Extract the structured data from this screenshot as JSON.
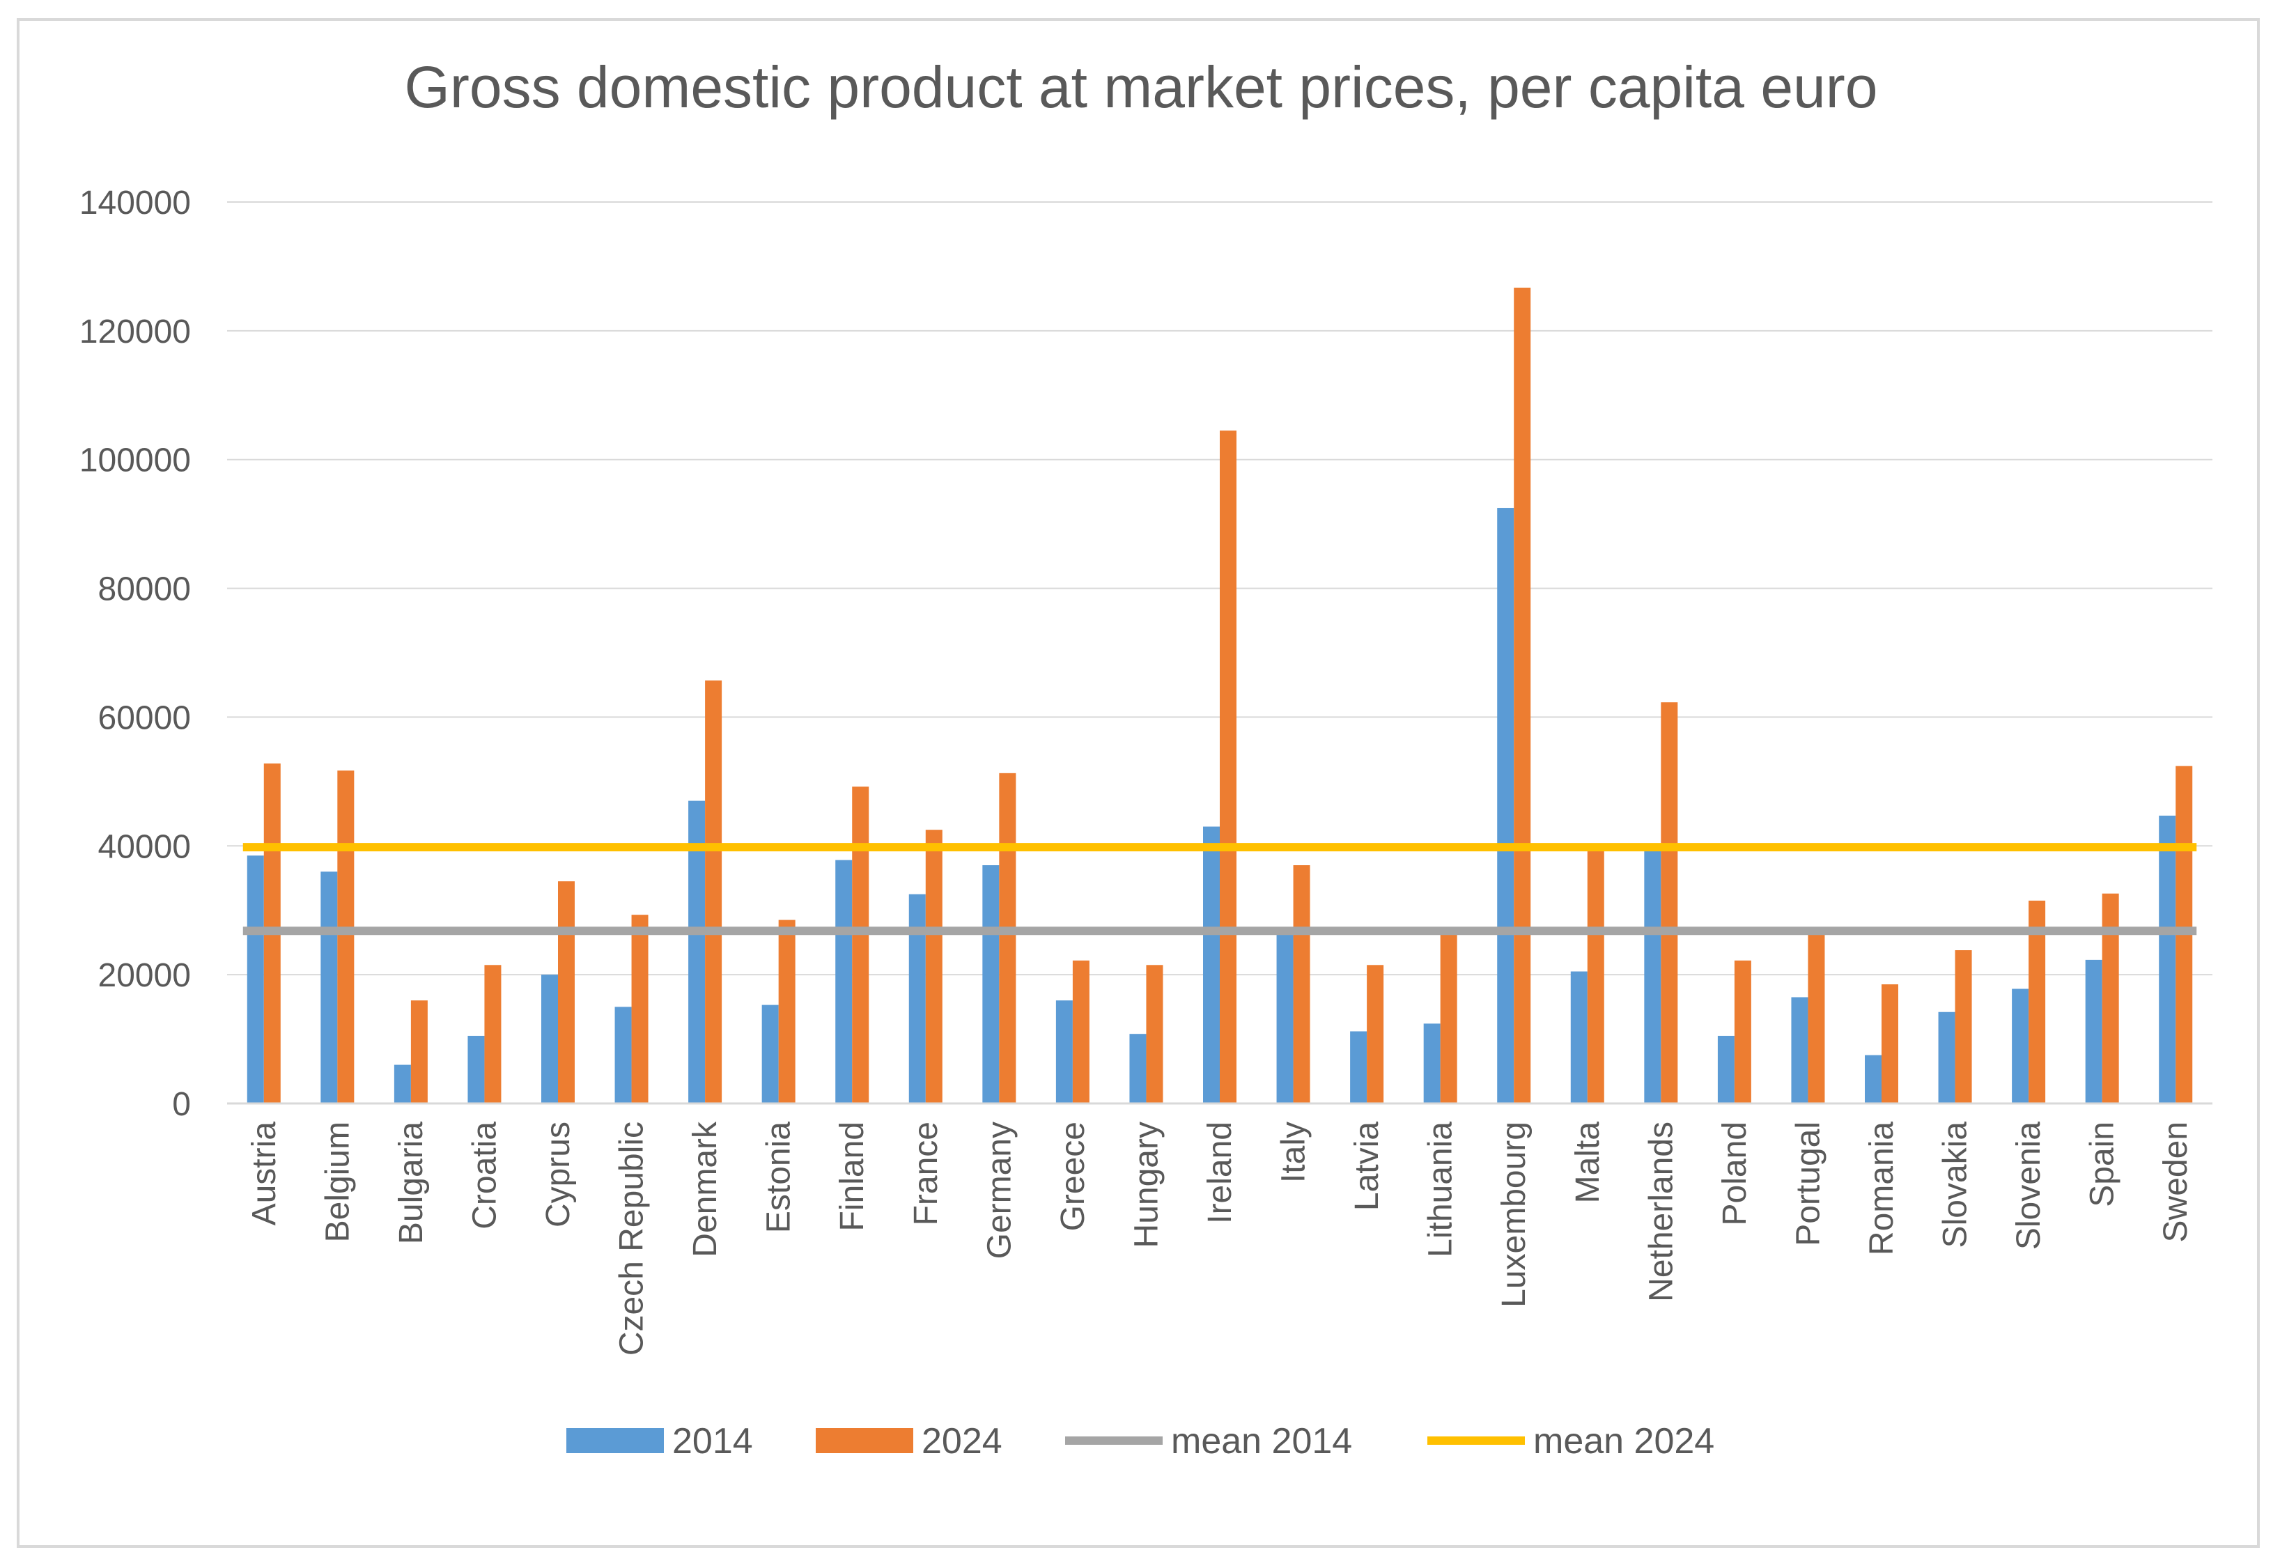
{
  "chart_data": {
    "type": "bar",
    "title": "Gross domestic product at market prices, per capita euro",
    "xlabel": "",
    "ylabel": "",
    "ylim": [
      0,
      140000
    ],
    "yticks": [
      "0",
      "20000",
      "40000",
      "60000",
      "80000",
      "100000",
      "120000",
      "140000"
    ],
    "grid": "horizontal",
    "legend_position": "bottom",
    "categories": [
      "Austria",
      "Belgium",
      "Bulgaria",
      "Croatia",
      "Cyprus",
      "Czech Republic",
      "Denmark",
      "Estonia",
      "Finland",
      "France",
      "Germany",
      "Greece",
      "Hungary",
      "Ireland",
      "Italy",
      "Latvia",
      "Lithuania",
      "Luxembourg",
      "Malta",
      "Netherlands",
      "Poland",
      "Portugal",
      "Romania",
      "Slovakia",
      "Slovenia",
      "Spain",
      "Sweden"
    ],
    "series": [
      {
        "name": "2014",
        "type": "bar",
        "color": "#5b9bd5",
        "values": [
          38500,
          36000,
          6000,
          10500,
          20000,
          15000,
          47000,
          15300,
          37800,
          32500,
          37000,
          16000,
          10800,
          43000,
          26600,
          11200,
          12400,
          92500,
          20500,
          39300,
          10500,
          16500,
          7500,
          14200,
          17800,
          22300,
          44700
        ]
      },
      {
        "name": "2024",
        "type": "bar",
        "color": "#ed7d31",
        "values": [
          52800,
          51700,
          16000,
          21500,
          34500,
          29300,
          65700,
          28500,
          49200,
          42500,
          51300,
          22200,
          21500,
          104500,
          37000,
          21500,
          26200,
          126700,
          39600,
          62300,
          22200,
          26300,
          18500,
          23800,
          31500,
          32600,
          52400
        ]
      },
      {
        "name": "mean 2014",
        "type": "line",
        "color": "#a5a5a5",
        "value": 26800
      },
      {
        "name": "mean 2024",
        "type": "line",
        "color": "#ffc000",
        "value": 39800
      }
    ]
  }
}
